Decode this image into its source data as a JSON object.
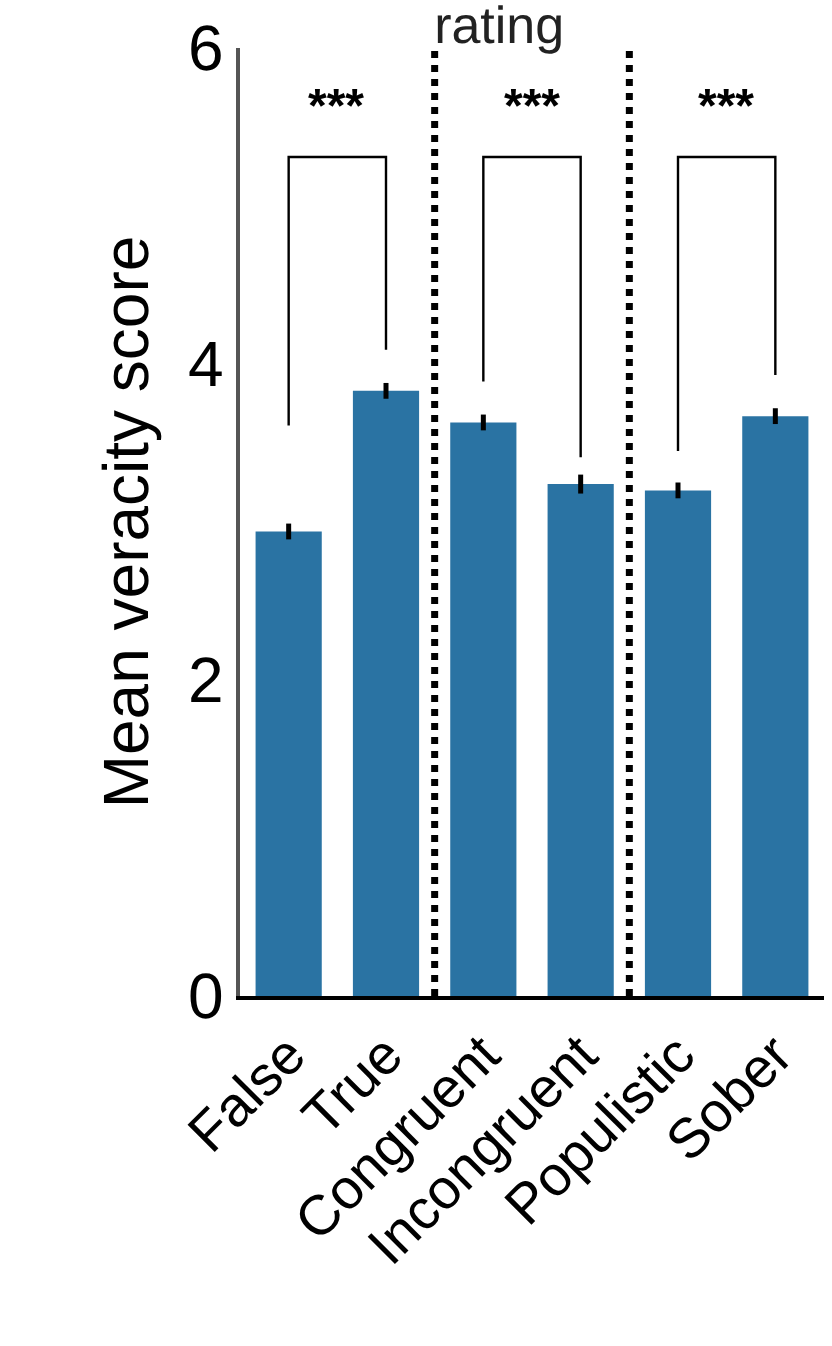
{
  "chart_data": {
    "type": "bar",
    "title": "rating",
    "ylabel": "Mean veracity score",
    "categories": [
      "False",
      "True",
      "Congruent",
      "Incongruent",
      "Populistic",
      "Sober"
    ],
    "values": [
      2.94,
      3.83,
      3.63,
      3.24,
      3.2,
      3.67
    ],
    "errors": [
      0.05,
      0.05,
      0.05,
      0.06,
      0.05,
      0.05
    ],
    "color": "#2a73a3",
    "ylim": [
      0,
      6
    ],
    "yticks": [
      0,
      2,
      4,
      6
    ],
    "grid": false,
    "annotations": [
      "***",
      "***",
      "***"
    ]
  }
}
